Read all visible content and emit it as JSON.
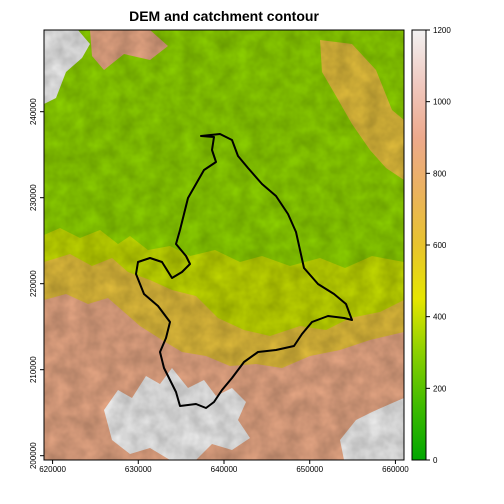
{
  "title": "DEM and catchment contour",
  "map": {
    "x_ticks": [
      "620000",
      "630000",
      "640000",
      "650000",
      "660000"
    ],
    "y_ticks": [
      "200000",
      "210000",
      "220000",
      "230000",
      "240000"
    ],
    "x_range": [
      619000,
      661000
    ],
    "y_range": [
      199500,
      249500
    ]
  },
  "legend": {
    "ticks": [
      "0",
      "200",
      "400",
      "600",
      "800",
      "1000",
      "1200"
    ],
    "range": [
      0,
      1200
    ],
    "colors": [
      "#00a600",
      "#3fbb00",
      "#8bd000",
      "#e6e600",
      "#e8c32e",
      "#ebb25e",
      "#eda98c",
      "#f0c9c0",
      "#f2f2f2"
    ]
  },
  "layer_colors": {
    "lowland": "#8fd400",
    "midland": "#c5dc00",
    "hill": "#e4bf3c",
    "upland": "#eaa986",
    "peak": "#f2f2f2",
    "catchment_outline": "#000000"
  }
}
